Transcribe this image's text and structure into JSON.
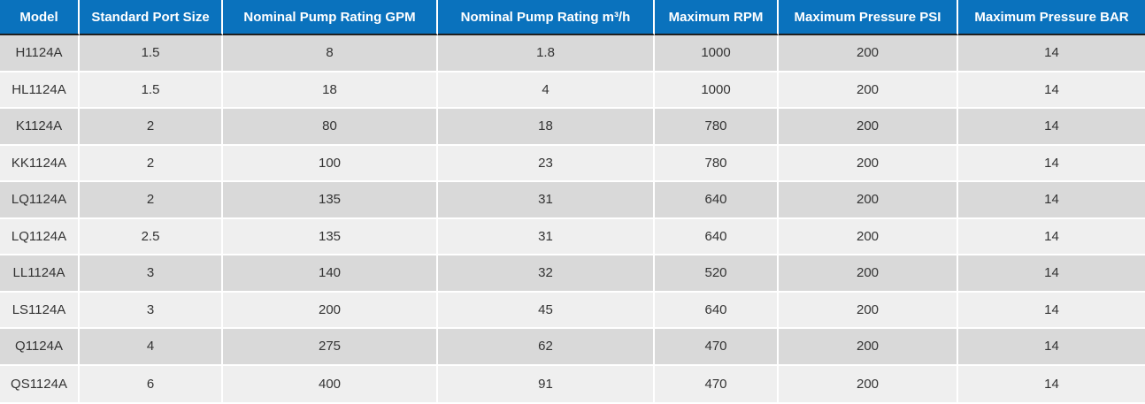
{
  "chart_data": {
    "type": "table",
    "columns": [
      "Model",
      "Standard Port Size",
      "Nominal Pump Rating GPM",
      "Nominal Pump Rating m³/h",
      "Maximum RPM",
      "Maximum Pressure PSI",
      "Maximum Pressure BAR"
    ],
    "rows": [
      [
        "H1124A",
        "1.5",
        "8",
        "1.8",
        "1000",
        "200",
        "14"
      ],
      [
        "HL1124A",
        "1.5",
        "18",
        "4",
        "1000",
        "200",
        "14"
      ],
      [
        "K1124A",
        "2",
        "80",
        "18",
        "780",
        "200",
        "14"
      ],
      [
        "KK1124A",
        "2",
        "100",
        "23",
        "780",
        "200",
        "14"
      ],
      [
        "LQ1124A",
        "2",
        "135",
        "31",
        "640",
        "200",
        "14"
      ],
      [
        "LQ1124A",
        "2.5",
        "135",
        "31",
        "640",
        "200",
        "14"
      ],
      [
        "LL1124A",
        "3",
        "140",
        "32",
        "520",
        "200",
        "14"
      ],
      [
        "LS1124A",
        "3",
        "200",
        "45",
        "640",
        "200",
        "14"
      ],
      [
        "Q1124A",
        "4",
        "275",
        "62",
        "470",
        "200",
        "14"
      ],
      [
        "QS1124A",
        "6",
        "400",
        "91",
        "470",
        "200",
        "14"
      ]
    ]
  },
  "colors": {
    "header_bg": "#0a72bd",
    "header_text": "#ffffff",
    "row_odd": "#d9d9d9",
    "row_even": "#efefef",
    "header_underline": "#1f1f1f",
    "body_text": "#333333",
    "separator": "#ffffff"
  }
}
